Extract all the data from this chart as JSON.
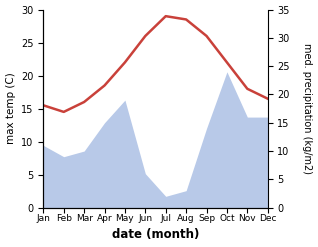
{
  "months": [
    "Jan",
    "Feb",
    "Mar",
    "Apr",
    "May",
    "Jun",
    "Jul",
    "Aug",
    "Sep",
    "Oct",
    "Nov",
    "Dec"
  ],
  "x": [
    1,
    2,
    3,
    4,
    5,
    6,
    7,
    8,
    9,
    10,
    11,
    12
  ],
  "temperature": [
    15.5,
    14.5,
    16.0,
    18.5,
    22.0,
    26.0,
    29.0,
    28.5,
    26.0,
    22.0,
    18.0,
    16.5
  ],
  "precipitation_kg": [
    11,
    9,
    10,
    15,
    19,
    6,
    2,
    3,
    14,
    24,
    16,
    16
  ],
  "temp_color": "#c9413a",
  "precip_color": "#b8c9e8",
  "ylabel_left": "max temp (C)",
  "ylabel_right": "med. precipitation (kg/m2)",
  "xlabel": "date (month)",
  "ylim_left": [
    0,
    30
  ],
  "ylim_right": [
    0,
    35
  ],
  "temp_linewidth": 1.8,
  "background_color": "#ffffff"
}
